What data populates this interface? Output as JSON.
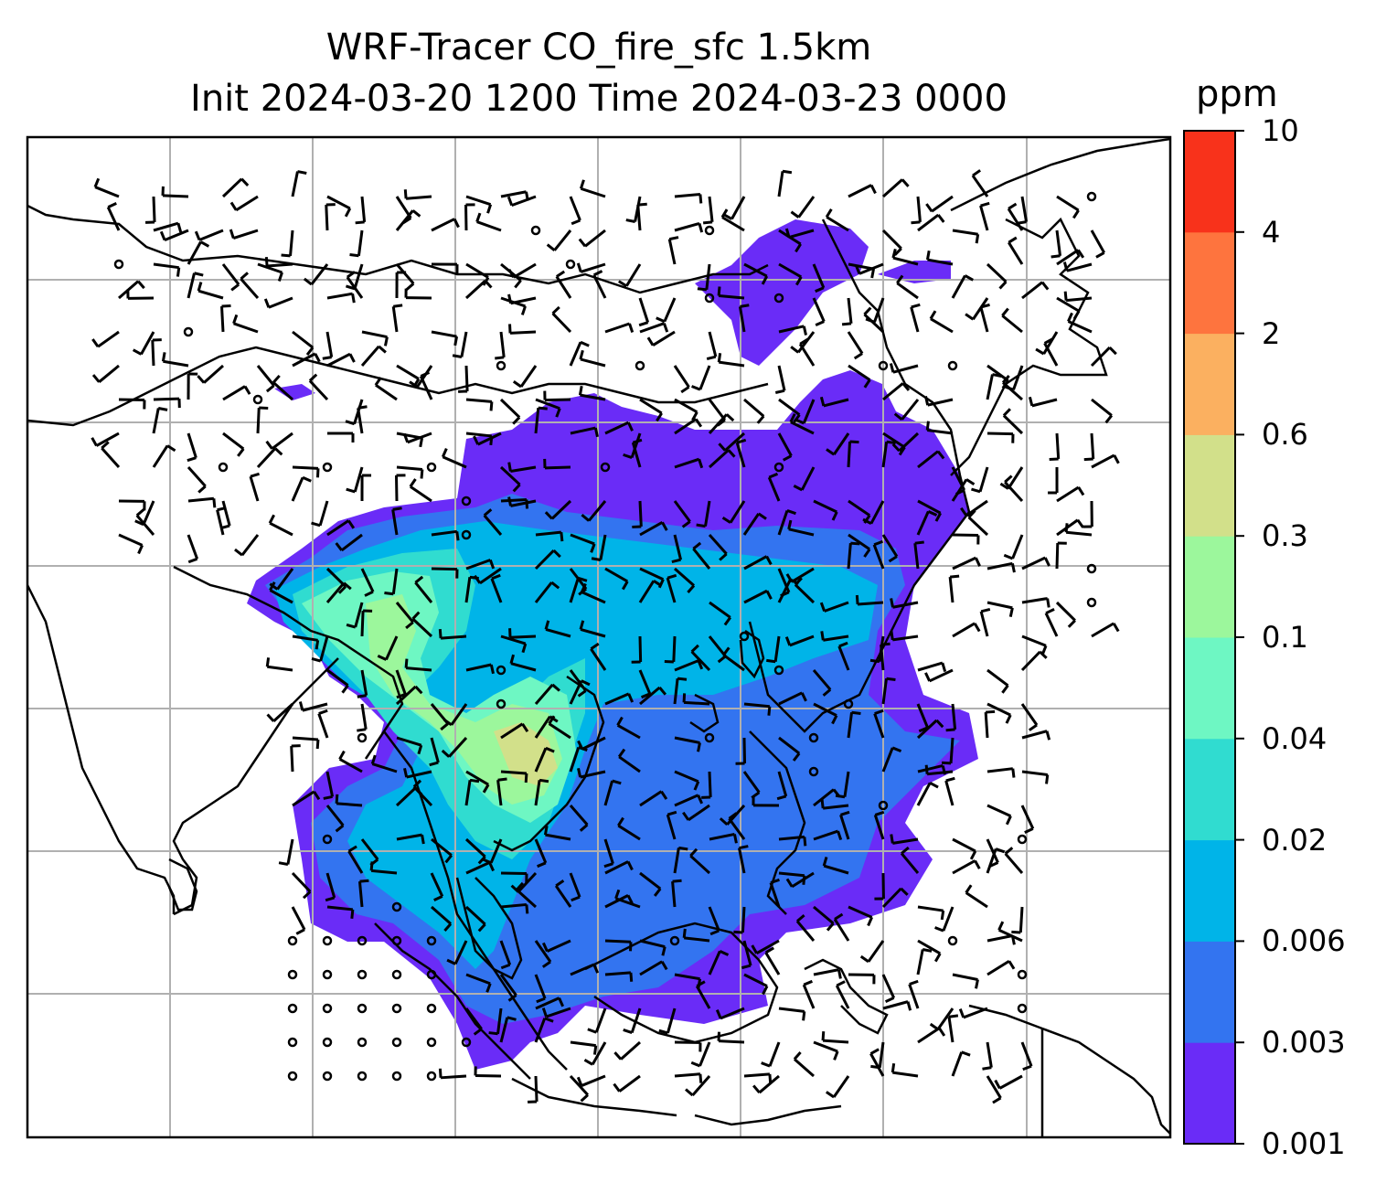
{
  "title": {
    "line1": "WRF-Tracer CO_fire_sfc 1.5km",
    "line2": "Init 2024-03-20 1200 Time 2024-03-23 0000"
  },
  "colorbar": {
    "units": "ppm",
    "tick_labels": [
      "0.001",
      "0.003",
      "0.006",
      "0.02",
      "0.04",
      "0.1",
      "0.3",
      "0.6",
      "2",
      "4",
      "10"
    ],
    "colors": [
      "#6a2cf7",
      "#3374f0",
      "#00b4e8",
      "#30dcd0",
      "#6ef7c3",
      "#9cf79c",
      "#d2e08a",
      "#fbb060",
      "#fe743e",
      "#f8321b"
    ]
  },
  "map": {
    "fill_colors": {
      "extent_0_001": "#6a2cf7",
      "level_0_003": "#3374f0",
      "level_0_006": "#00b4e8",
      "level_0_02": "#30dcd0",
      "level_0_04": "#6ef7c3",
      "level_0_1": "#9cf79c",
      "level_0_3": "#d2e08a"
    },
    "gridline_color": "#b0b0b0",
    "coastline_color": "#000000",
    "symbols": {
      "wind_barbs": "wind-barb",
      "calm_circles": "calm-circle"
    }
  }
}
